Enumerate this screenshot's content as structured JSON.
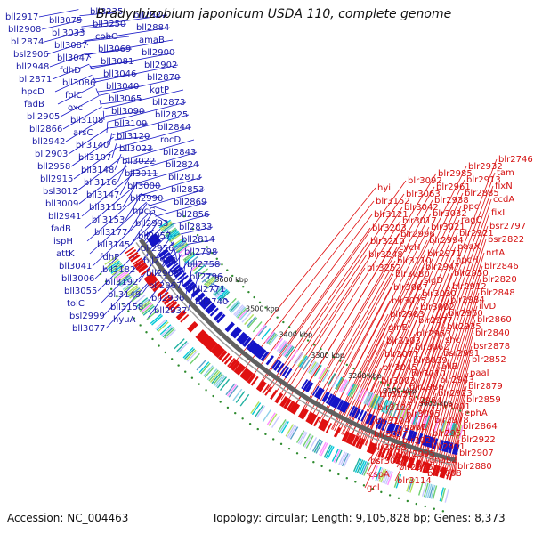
{
  "title": "Bradyrhizobium japonicum USDA 110, complete genome",
  "accession_text": "Accession: NC_004463",
  "summary_text": "Topology: circular; Length: 9,105,828 bp; Genes: 8,373",
  "ticks": [
    "3000 kbp",
    "3100 kbp",
    "3200 kbp",
    "3300 kbp",
    "3400 kbp",
    "3500 kbp",
    "3600 kbp"
  ],
  "colors": {
    "plus_strand": "#1414c8",
    "minus_strand": "#e01010",
    "backbone": "#606060",
    "marker": "#2e8b2e"
  },
  "blue_labels": [
    "bll2917",
    "bll2908",
    "bll2874",
    "bsl2906",
    "bll2948",
    "bll2871",
    "hpcD",
    "fadB",
    "bll2905",
    "bll2866",
    "bll2942",
    "bll2903",
    "bll2958",
    "bll2915",
    "bsl3012",
    "bll3009",
    "bll2941",
    "fadB",
    "ispH",
    "attK",
    "bll3041",
    "bll3006",
    "bll3055",
    "tolC",
    "bsl2999",
    "bll3077",
    "bll3034",
    "bll3075",
    "bll3033",
    "bll3087",
    "bll3047",
    "fdhD",
    "bll3086",
    "folC",
    "oxc",
    "bll3108",
    "arsC",
    "bll3140",
    "bll3107",
    "bll3148",
    "bll3116",
    "bll3147",
    "bll3115",
    "bll3153",
    "bll3177",
    "bll3145",
    "fdhF",
    "bll3182",
    "bll3192",
    "bll3149",
    "bll3158",
    "hyuA",
    "bll3194",
    "bll3235",
    "bll3250",
    "cobO",
    "bll3069",
    "bll3081",
    "bll3046",
    "bll3040",
    "bll3065",
    "bll3090",
    "bll3109",
    "bll3120",
    "bll3023",
    "bll3022",
    "bll3011",
    "bll3000",
    "bll2990",
    "hpcG",
    "bll2993",
    "bll2957",
    "bll2956",
    "bll2998",
    "bll2965",
    "bll2967",
    "bll2936",
    "bll2937",
    "bll2940",
    "bll2914",
    "bll2927",
    "bll2884",
    "amaB",
    "bll2900",
    "bll2902",
    "bll2870",
    "kgtP",
    "bll2873",
    "bll2825",
    "bll2844",
    "rocD",
    "bll2843",
    "bll2824",
    "bll2813",
    "bll2853",
    "bll2869",
    "bll2856",
    "bll2833",
    "bll2814",
    "bll2798",
    "bll2758",
    "bll2796",
    "bll2771",
    "bll2740",
    "bsl2782",
    "fixL"
  ],
  "red_labels": [
    "blr2746",
    "tam",
    "fixN",
    "ccdA",
    "fixI",
    "bsr2797",
    "bsr2822",
    "nrtA",
    "blr2846",
    "blr2820",
    "blr2848",
    "ilvD",
    "blr2860",
    "blr2840",
    "bsr2878",
    "blr2852",
    "paaI",
    "blr2879",
    "blr2859",
    "ephA",
    "blr2864",
    "blr2922",
    "blr2907",
    "blr2880",
    "blr2932",
    "blr2913",
    "blr2885",
    "ppc",
    "ragC",
    "blr2921",
    "paaX",
    "hpcH",
    "blr2950",
    "blr2912",
    "blr2984",
    "blr2960",
    "blr2935",
    "shc",
    "bsr2991",
    "allB",
    "blr2943",
    "blr2923",
    "blr3001",
    "blr2978",
    "blr2951",
    "blr2931",
    "dnaE2",
    "blr3008",
    "blr2985",
    "blr2961",
    "blr2938",
    "blr3032",
    "blr3021",
    "blr2994",
    "blr2971",
    "blr2947",
    "sigD",
    "blr3030",
    "blr3002",
    "blr2977",
    "blr2953",
    "blr3062",
    "blr3039",
    "blr3010",
    "blr2986",
    "blr2964",
    "blr3095",
    "dapE",
    "blr3024",
    "blr2995",
    "blr2975",
    "blr3114",
    "blr3092",
    "blr3063",
    "blr3042",
    "blr3017",
    "blr2996",
    "cycH",
    "blr3110",
    "blr3080",
    "blr3067",
    "blr3025",
    "blr2983",
    "glnE",
    "blr3103",
    "blr3071",
    "blr3045",
    "blr3003",
    "blr3151",
    "blr3123",
    "blr3104",
    "blr3097",
    "blr3068",
    "bsr3027",
    "cspA",
    "gcl",
    "hyi",
    "blr3152",
    "blr3121",
    "blr3203",
    "blr3210",
    "blr3248",
    "blr3252"
  ]
}
